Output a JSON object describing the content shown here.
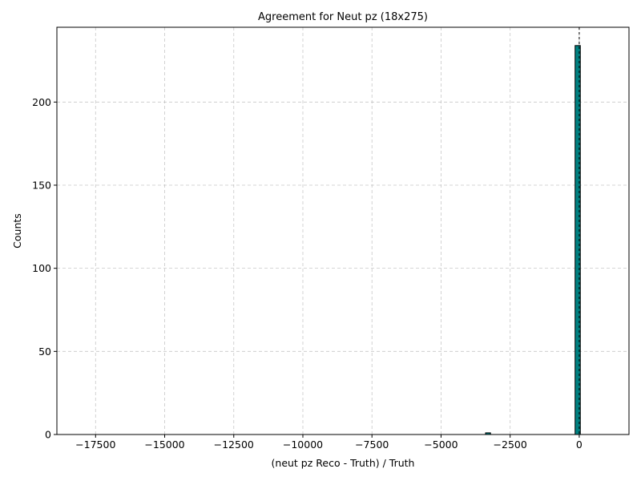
{
  "chart_data": {
    "type": "bar",
    "title": "Agreement for Neut pz (18x275)",
    "xlabel": "(neut pz Reco - Truth) / Truth",
    "ylabel": "Counts",
    "xlim": [
      -18900,
      1800
    ],
    "ylim": [
      0,
      245
    ],
    "x_ticks": [
      -17500,
      -15000,
      -12500,
      -10000,
      -7500,
      -5000,
      -2500,
      0
    ],
    "x_tick_labels": [
      "−17500",
      "−15000",
      "−12500",
      "−10000",
      "−7500",
      "−5000",
      "−2500",
      "0"
    ],
    "y_ticks": [
      0,
      50,
      100,
      150,
      200
    ],
    "y_tick_labels": [
      "0",
      "50",
      "100",
      "150",
      "200"
    ],
    "range": [
      -18070,
      40
    ],
    "bins": 100,
    "bars": [
      {
        "x_start": -3390,
        "x_end": -3210,
        "count": 1
      },
      {
        "x_start": -150,
        "x_end": 40,
        "count": 234
      }
    ],
    "bar_color": "#008080",
    "edge_color": "#000000",
    "grid": true,
    "reference_line": {
      "x": 0,
      "style": "dashed"
    },
    "legend": "none"
  }
}
